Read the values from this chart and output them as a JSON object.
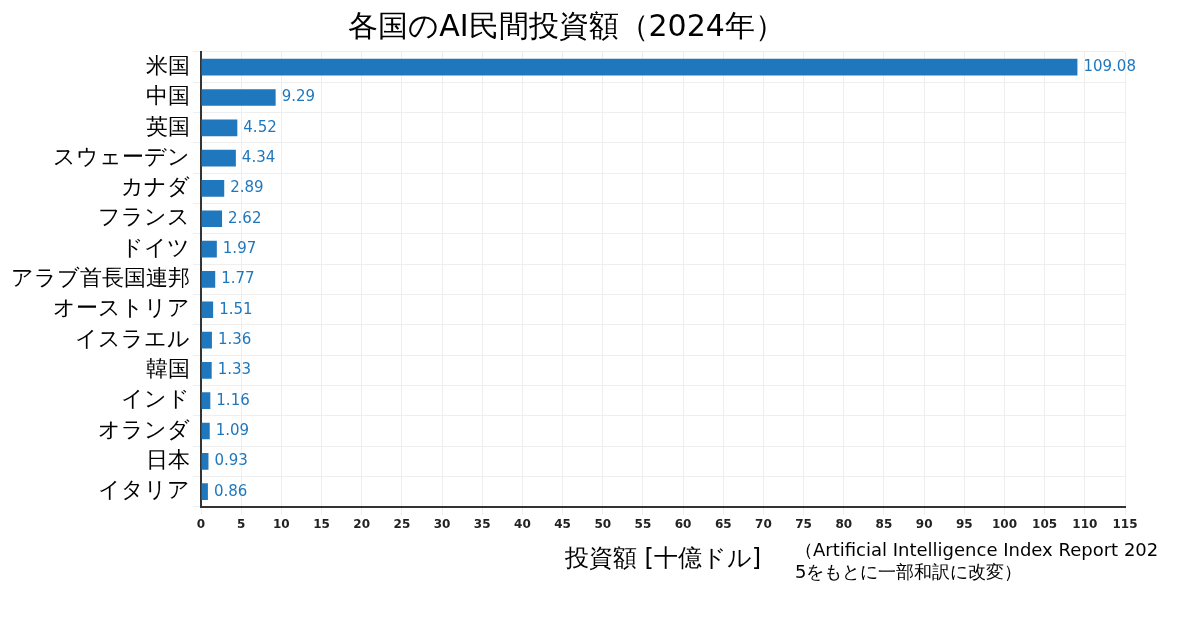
{
  "chart_data": {
    "type": "bar",
    "orientation": "horizontal",
    "title": "各国のAI民間投資額（2024年）",
    "xlabel": "投資額 [十億ドル]",
    "categories": [
      "米国",
      "中国",
      "英国",
      "スウェーデン",
      "カナダ",
      "フランス",
      "ドイツ",
      "アラブ首長国連邦",
      "オーストリア",
      "イスラエル",
      "韓国",
      "インド",
      "オランダ",
      "日本",
      "イタリア"
    ],
    "values": [
      109.08,
      9.29,
      4.52,
      4.34,
      2.89,
      2.62,
      1.97,
      1.77,
      1.51,
      1.36,
      1.33,
      1.16,
      1.09,
      0.93,
      0.86
    ],
    "color": "#1f77bd",
    "xlim": [
      0,
      115
    ],
    "xticks": [
      0,
      5,
      10,
      15,
      20,
      25,
      30,
      35,
      40,
      45,
      50,
      55,
      60,
      65,
      70,
      75,
      80,
      85,
      90,
      95,
      100,
      105,
      110,
      115
    ],
    "grid": true,
    "data_labels": true,
    "annotations": [
      "（Artificial Intelligence Index Report 2025をもとに一部和訳に改変）"
    ]
  }
}
